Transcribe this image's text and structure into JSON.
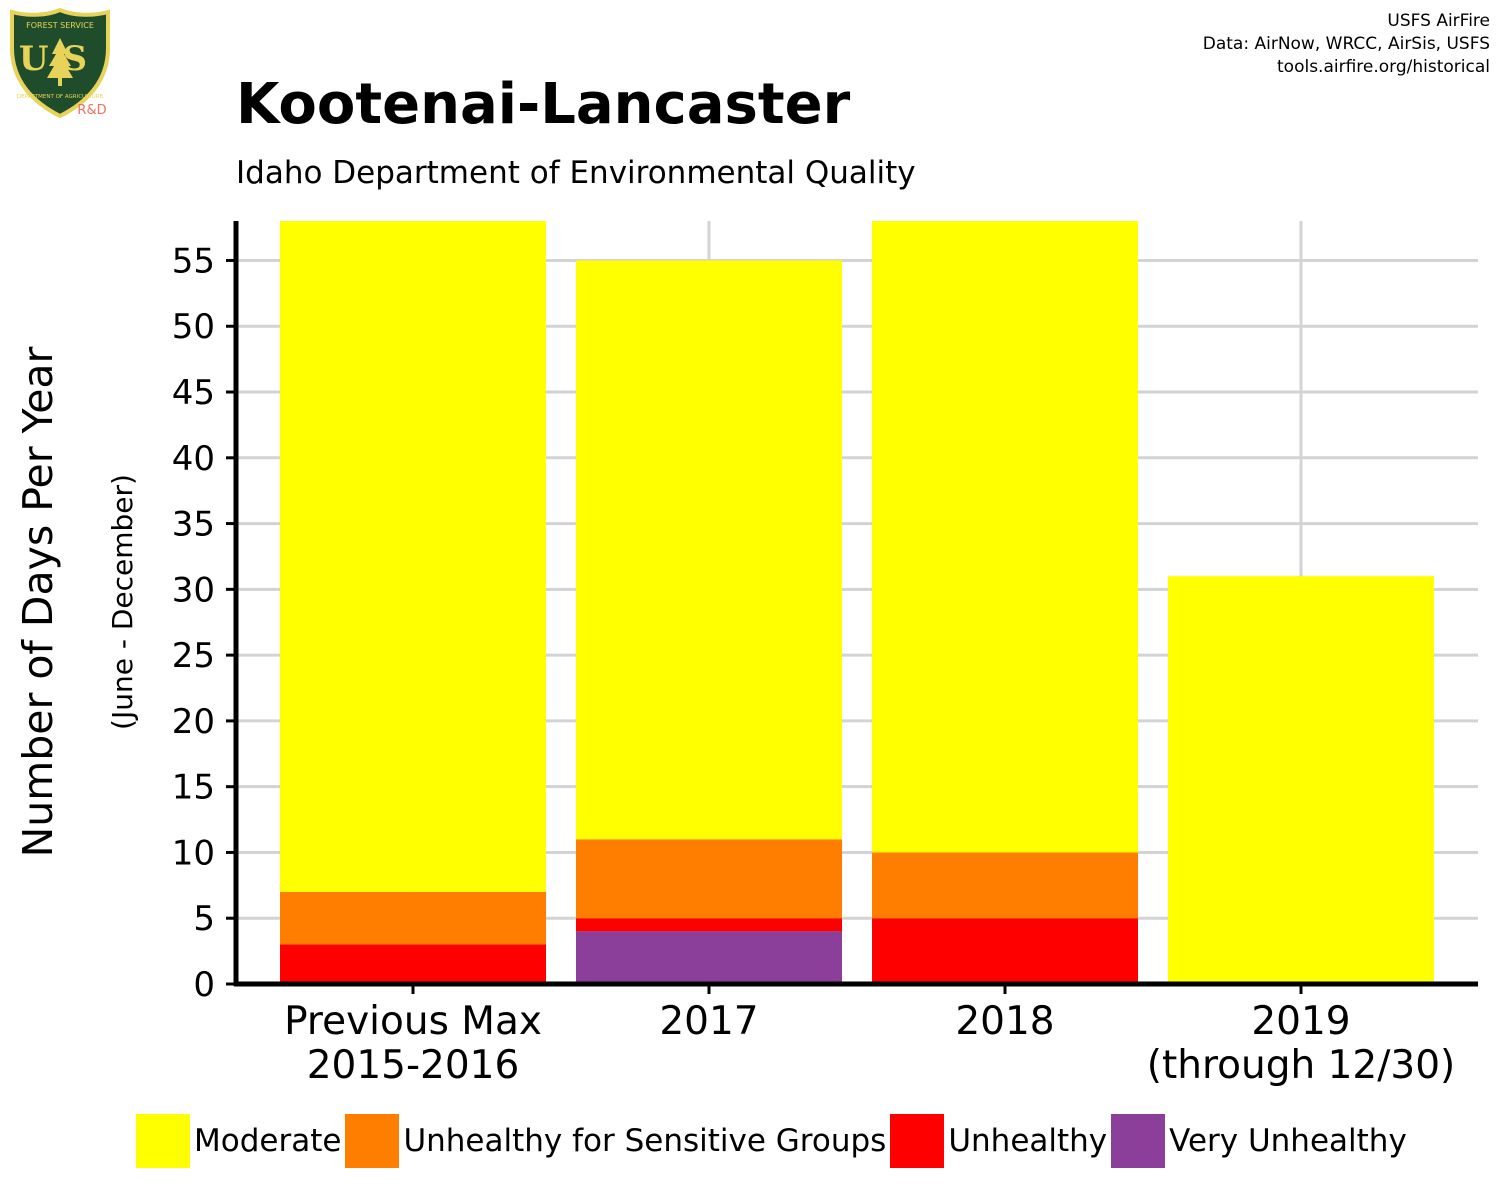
{
  "header": {
    "title": "Kootenai-Lancaster",
    "subtitle": "Idaho Department of Environmental Quality",
    "credits": [
      "USFS AirFire",
      "Data: AirNow, WRCC, AirSis, USFS",
      "tools.airfire.org/historical"
    ]
  },
  "logo": {
    "top_text": "FOREST SERVICE",
    "letters": "US",
    "bottom_text": "DEPARTMENT OF AGRICULTURE",
    "tag": "R&D",
    "colors": {
      "shield": "#1f4d2b",
      "rim": "#e8d35a",
      "tag": "#f07060"
    }
  },
  "chart_data": {
    "type": "bar",
    "stacked": true,
    "categories": [
      [
        "Previous Max",
        "2015-2016"
      ],
      [
        "2017"
      ],
      [
        "2018"
      ],
      [
        "2019",
        "(through 12/30)"
      ]
    ],
    "series": [
      {
        "name": "Very Unhealthy",
        "color": "#8B3F9A",
        "values": [
          0,
          4,
          0,
          0
        ]
      },
      {
        "name": "Unhealthy",
        "color": "#FF0000",
        "values": [
          3,
          1,
          5,
          0
        ]
      },
      {
        "name": "Unhealthy for Sensitive Groups",
        "color": "#FF7E00",
        "values": [
          4,
          6,
          5,
          0
        ]
      },
      {
        "name": "Moderate",
        "color": "#FFFF00",
        "values": [
          51,
          44,
          48,
          31
        ]
      }
    ],
    "legend_order": [
      "Moderate",
      "Unhealthy for Sensitive Groups",
      "Unhealthy",
      "Very Unhealthy"
    ],
    "ylabel": "Number of Days Per Year",
    "ylabel_sub": "(June - December)",
    "ylim": [
      0,
      58
    ],
    "yticks": [
      0,
      5,
      10,
      15,
      20,
      25,
      30,
      35,
      40,
      45,
      50,
      55
    ],
    "grid": true,
    "legend_position": "bottom"
  }
}
